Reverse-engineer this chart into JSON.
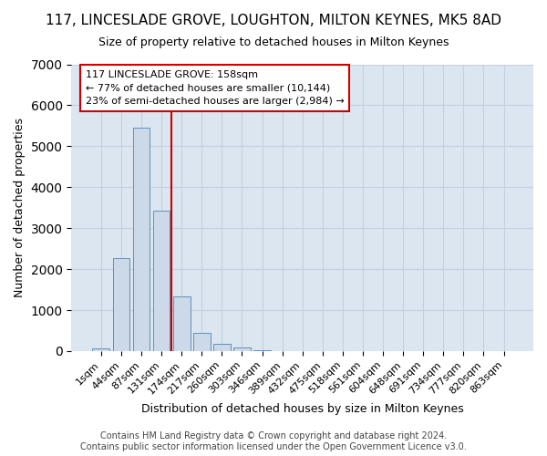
{
  "title": "117, LINCESLADE GROVE, LOUGHTON, MILTON KEYNES, MK5 8AD",
  "subtitle": "Size of property relative to detached houses in Milton Keynes",
  "xlabel": "Distribution of detached houses by size in Milton Keynes",
  "ylabel": "Number of detached properties",
  "footer_line1": "Contains HM Land Registry data © Crown copyright and database right 2024.",
  "footer_line2": "Contains public sector information licensed under the Open Government Licence v3.0.",
  "bar_color": "#ccd9e8",
  "bar_edge_color": "#6090bb",
  "grid_color": "#c5cfe0",
  "background_color": "#dce6f0",
  "annotation_line_color": "#cc0000",
  "categories": [
    "1sqm",
    "44sqm",
    "87sqm",
    "131sqm",
    "174sqm",
    "217sqm",
    "260sqm",
    "303sqm",
    "346sqm",
    "389sqm",
    "432sqm",
    "475sqm",
    "518sqm",
    "561sqm",
    "604sqm",
    "648sqm",
    "691sqm",
    "734sqm",
    "777sqm",
    "820sqm",
    "863sqm"
  ],
  "values": [
    70,
    2270,
    5450,
    3430,
    1330,
    450,
    170,
    90,
    30,
    0,
    0,
    0,
    0,
    0,
    0,
    0,
    0,
    0,
    0,
    0,
    0
  ],
  "property_label": "117 LINCESLADE GROVE: 158sqm",
  "annotation_line1": "← 77% of detached houses are smaller (10,144)",
  "annotation_line2": "23% of semi-detached houses are larger (2,984) →",
  "vline_position": 3.5,
  "ylim": [
    0,
    7000
  ],
  "title_fontsize": 11,
  "subtitle_fontsize": 9,
  "ylabel_fontsize": 9,
  "xlabel_fontsize": 9,
  "tick_fontsize": 8,
  "annotation_fontsize": 8,
  "footer_fontsize": 7
}
